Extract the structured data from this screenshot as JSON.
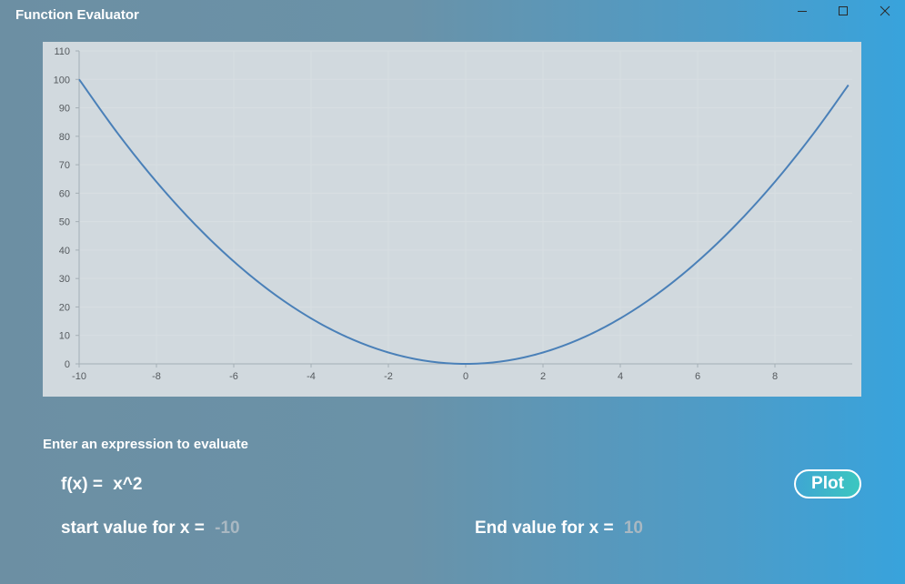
{
  "window": {
    "title": "Function Evaluator",
    "controls": [
      "minimize-icon",
      "maximize-icon",
      "close-icon"
    ]
  },
  "chart_data": {
    "type": "line",
    "title": "",
    "xlabel": "",
    "ylabel": "",
    "xlim": [
      -10,
      10
    ],
    "ylim": [
      0,
      110
    ],
    "x_ticks": [
      -10,
      -8,
      -6,
      -4,
      -2,
      0,
      2,
      4,
      6,
      8
    ],
    "y_ticks": [
      0,
      10,
      20,
      30,
      40,
      50,
      60,
      70,
      80,
      90,
      100,
      110
    ],
    "grid": true,
    "legend": "none",
    "line_color": "#4a80b8",
    "series": [
      {
        "x": [
          -10,
          -9,
          -8,
          -7,
          -6,
          -5,
          -4,
          -3,
          -2,
          -1,
          0,
          1,
          2,
          3,
          4,
          5,
          6,
          7,
          8,
          9,
          9.9
        ],
        "y": [
          100,
          81,
          64,
          49,
          36,
          25,
          16,
          9,
          4,
          1,
          0,
          1,
          4,
          9,
          16,
          25,
          36,
          49,
          64,
          81,
          98.01
        ]
      }
    ]
  },
  "form": {
    "prompt": "Enter an expression to evaluate",
    "fx_label": "f(x) = ",
    "expression": "x^2",
    "plot_label": "Plot",
    "start_label": "start value for x = ",
    "start_value": "-10",
    "end_label": "End value for x = ",
    "end_value": "10"
  }
}
